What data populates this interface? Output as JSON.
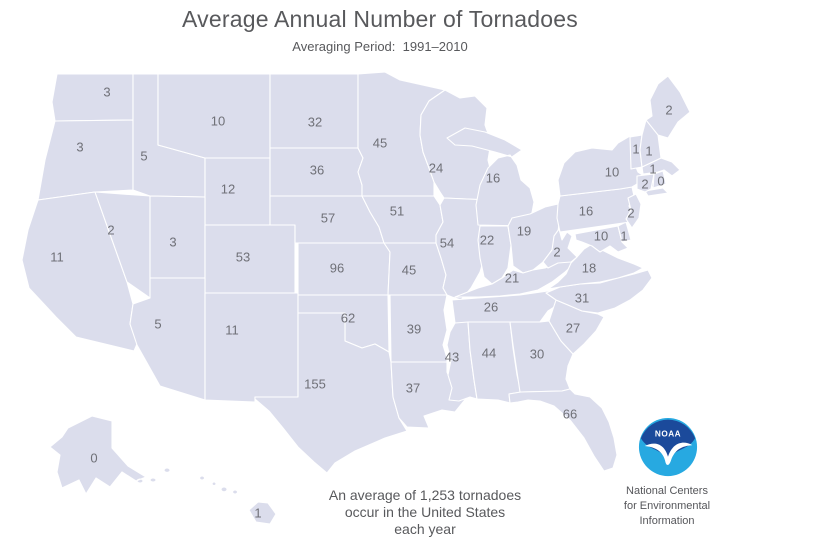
{
  "title": "Average Annual Number of Tornadoes",
  "subtitle": "Averaging Period:  1991–2010",
  "annotation": {
    "line1": "An average of 1,253 tornadoes",
    "line2": "occur in the United States",
    "line3": "each year"
  },
  "logo": {
    "acronym": "NOAA",
    "caption_line1": "National Centers",
    "caption_line2": "for Environmental",
    "caption_line3": "Information",
    "navy": "#1b4a9b",
    "cyan": "#27a9e1"
  },
  "colors": {
    "state_fill": "#dbddec",
    "state_border": "#ffffff",
    "label_color": "#6f7077",
    "text_gray": "#58595c"
  },
  "map": {
    "description": "Choropleth-style US map, each state labeled with its average annual tornado count",
    "states": [
      {
        "id": "WA",
        "name": "Washington",
        "value": "3"
      },
      {
        "id": "OR",
        "name": "Oregon",
        "value": "3"
      },
      {
        "id": "CA",
        "name": "California",
        "value": "11"
      },
      {
        "id": "NV",
        "name": "Nevada",
        "value": "2"
      },
      {
        "id": "ID",
        "name": "Idaho",
        "value": "5"
      },
      {
        "id": "MT",
        "name": "Montana",
        "value": "10"
      },
      {
        "id": "WY",
        "name": "Wyoming",
        "value": "12"
      },
      {
        "id": "UT",
        "name": "Utah",
        "value": "3"
      },
      {
        "id": "CO",
        "name": "Colorado",
        "value": "53"
      },
      {
        "id": "AZ",
        "name": "Arizona",
        "value": "5"
      },
      {
        "id": "NM",
        "name": "New Mexico",
        "value": "11"
      },
      {
        "id": "ND",
        "name": "North Dakota",
        "value": "32"
      },
      {
        "id": "SD",
        "name": "South Dakota",
        "value": "36"
      },
      {
        "id": "NE",
        "name": "Nebraska",
        "value": "57"
      },
      {
        "id": "KS",
        "name": "Kansas",
        "value": "96"
      },
      {
        "id": "OK",
        "name": "Oklahoma",
        "value": "62"
      },
      {
        "id": "TX",
        "name": "Texas",
        "value": "155"
      },
      {
        "id": "MN",
        "name": "Minnesota",
        "value": "45"
      },
      {
        "id": "IA",
        "name": "Iowa",
        "value": "51"
      },
      {
        "id": "MO",
        "name": "Missouri",
        "value": "45"
      },
      {
        "id": "AR",
        "name": "Arkansas",
        "value": "39"
      },
      {
        "id": "LA",
        "name": "Louisiana",
        "value": "37"
      },
      {
        "id": "WI",
        "name": "Wisconsin",
        "value": "24"
      },
      {
        "id": "IL",
        "name": "Illinois",
        "value": "54"
      },
      {
        "id": "MI",
        "name": "Michigan",
        "value": "16"
      },
      {
        "id": "IN",
        "name": "Indiana",
        "value": "22"
      },
      {
        "id": "OH",
        "name": "Ohio",
        "value": "19"
      },
      {
        "id": "KY",
        "name": "Kentucky",
        "value": "21"
      },
      {
        "id": "TN",
        "name": "Tennessee",
        "value": "26"
      },
      {
        "id": "MS",
        "name": "Mississippi",
        "value": "43"
      },
      {
        "id": "AL",
        "name": "Alabama",
        "value": "44"
      },
      {
        "id": "GA",
        "name": "Georgia",
        "value": "30"
      },
      {
        "id": "FL",
        "name": "Florida",
        "value": "66"
      },
      {
        "id": "SC",
        "name": "South Carolina",
        "value": "27"
      },
      {
        "id": "NC",
        "name": "North Carolina",
        "value": "31"
      },
      {
        "id": "VA",
        "name": "Virginia",
        "value": "18"
      },
      {
        "id": "WV",
        "name": "West Virginia",
        "value": "2"
      },
      {
        "id": "MD",
        "name": "Maryland",
        "value": "10"
      },
      {
        "id": "DE",
        "name": "Delaware",
        "value": "1"
      },
      {
        "id": "PA",
        "name": "Pennsylvania",
        "value": "16"
      },
      {
        "id": "NJ",
        "name": "New Jersey",
        "value": "2"
      },
      {
        "id": "NY",
        "name": "New York",
        "value": "10"
      },
      {
        "id": "CT",
        "name": "Connecticut",
        "value": "2"
      },
      {
        "id": "RI",
        "name": "Rhode Island",
        "value": "0"
      },
      {
        "id": "MA",
        "name": "Massachusetts",
        "value": "1"
      },
      {
        "id": "VT",
        "name": "Vermont",
        "value": "1"
      },
      {
        "id": "NH",
        "name": "New Hampshire",
        "value": "1"
      },
      {
        "id": "ME",
        "name": "Maine",
        "value": "2"
      },
      {
        "id": "AK",
        "name": "Alaska",
        "value": "0"
      },
      {
        "id": "HI",
        "name": "Hawaii",
        "value": "1"
      }
    ]
  }
}
